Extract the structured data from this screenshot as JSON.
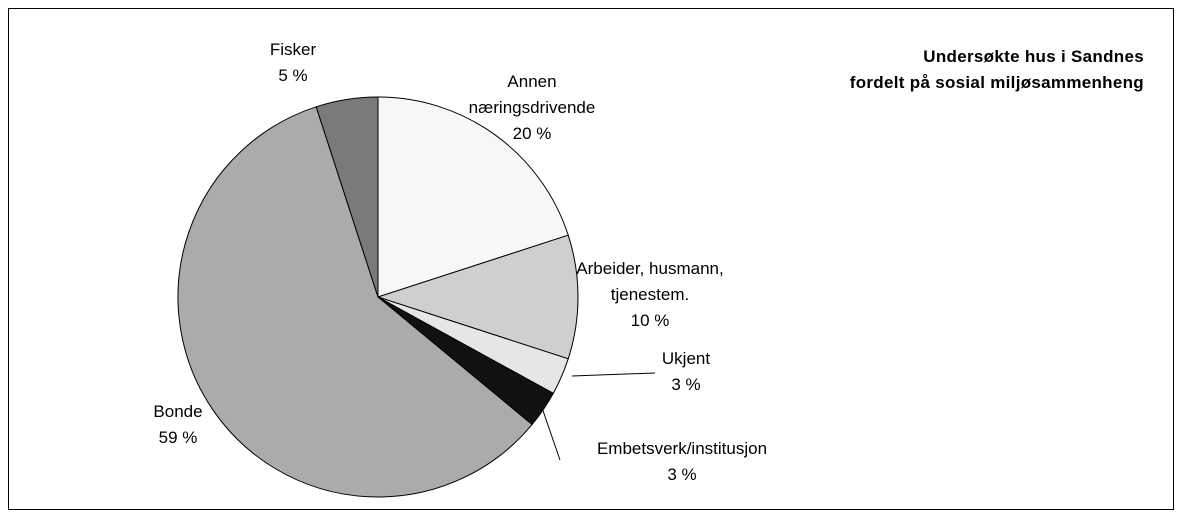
{
  "chart_data": {
    "type": "pie",
    "title": "Undersøkte hus i Sandnes\nfordelt på sosial miljøsammenheng",
    "categories": [
      "Annen\nnæringsdrivende",
      "Arbeider, husmann,\ntjenestem.",
      "Ukjent",
      "Embetsverk/institusjon",
      "Bonde",
      "Fisker"
    ],
    "values": [
      20,
      10,
      3,
      3,
      59,
      5
    ],
    "value_labels": [
      "20 %",
      "10 %",
      "3 %",
      "3 %",
      "59 %",
      "5 %"
    ],
    "colors": [
      "#f7f7f7",
      "#cfcfcf",
      "#e6e6e6",
      "#111111",
      "#ababab",
      "#7a7a7a"
    ]
  }
}
